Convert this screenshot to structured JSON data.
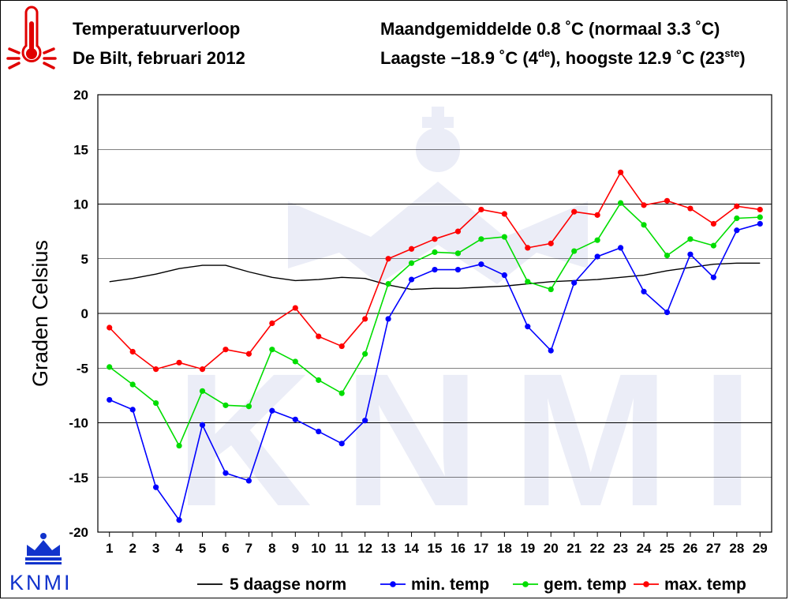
{
  "header": {
    "title": "Temperatuurverloop",
    "location": "De Bilt, februari 2012",
    "monthly_avg_prefix": "Maandgemiddelde 0.8 ˚C (normaal 3.3 ˚C)",
    "extremes_lowest": "Laagste −18.9 ˚C (4",
    "extremes_lowest_sup": "de",
    "extremes_highest": "), hoogste 12.9 ˚C (23",
    "extremes_highest_sup": "ste",
    "extremes_close": ")"
  },
  "logo": {
    "text": "KNMI",
    "icon": "crown-icon",
    "thermometer_icon": "thermometer-icon"
  },
  "watermark": {
    "text": "KNMI"
  },
  "colors": {
    "norm": "#000000",
    "min": "#0000ff",
    "avg": "#00dd00",
    "max": "#ff0000",
    "grid": "#000000",
    "thermometer": "#e00000",
    "logo": "#1133cc"
  },
  "chart_data": {
    "type": "line",
    "title": "",
    "xlabel": "",
    "ylabel": "Graden Celsius",
    "ylim": [
      -20,
      20
    ],
    "yticks": [
      -20,
      -15,
      -10,
      -5,
      0,
      5,
      10,
      15,
      20
    ],
    "xlim": [
      0.5,
      29.5
    ],
    "x": [
      1,
      2,
      3,
      4,
      5,
      6,
      7,
      8,
      9,
      10,
      11,
      12,
      13,
      14,
      15,
      16,
      17,
      18,
      19,
      20,
      21,
      22,
      23,
      24,
      25,
      26,
      27,
      28,
      29
    ],
    "grid": "horizontal",
    "legend_position": "bottom",
    "series": [
      {
        "name": "5 daagse norm",
        "color": "#000000",
        "markers": false,
        "values": [
          2.9,
          3.2,
          3.6,
          4.1,
          4.4,
          4.4,
          3.8,
          3.3,
          3.0,
          3.1,
          3.3,
          3.2,
          2.6,
          2.2,
          2.3,
          2.3,
          2.4,
          2.5,
          2.7,
          2.9,
          3.0,
          3.1,
          3.3,
          3.5,
          3.9,
          4.2,
          4.5,
          4.6,
          4.6
        ]
      },
      {
        "name": "min. temp",
        "color": "#0000ff",
        "markers": true,
        "values": [
          -7.9,
          -8.8,
          -15.9,
          -18.9,
          -10.2,
          -14.6,
          -15.3,
          -8.9,
          -9.7,
          -10.8,
          -11.9,
          -9.8,
          -0.5,
          3.1,
          4.0,
          4.0,
          4.5,
          3.5,
          -1.2,
          -3.4,
          2.8,
          5.2,
          6.0,
          2.0,
          0.1,
          5.4,
          3.3,
          7.6,
          8.2
        ]
      },
      {
        "name": "gem. temp",
        "color": "#00dd00",
        "markers": true,
        "values": [
          -4.9,
          -6.5,
          -8.2,
          -12.1,
          -7.1,
          -8.4,
          -8.5,
          -3.3,
          -4.4,
          -6.1,
          -7.3,
          -3.7,
          2.7,
          4.6,
          5.6,
          5.5,
          6.8,
          7.0,
          2.9,
          2.2,
          5.7,
          6.7,
          10.1,
          8.1,
          5.3,
          6.8,
          6.2,
          8.7,
          8.8
        ]
      },
      {
        "name": "max. temp",
        "color": "#ff0000",
        "markers": true,
        "values": [
          -1.3,
          -3.5,
          -5.1,
          -4.5,
          -5.1,
          -3.3,
          -3.7,
          -0.9,
          0.5,
          -2.1,
          -3.0,
          -0.5,
          5.0,
          5.9,
          6.8,
          7.5,
          9.5,
          9.1,
          6.0,
          6.4,
          9.3,
          9.0,
          12.9,
          9.9,
          10.3,
          9.6,
          8.2,
          9.8,
          9.5
        ]
      }
    ]
  }
}
